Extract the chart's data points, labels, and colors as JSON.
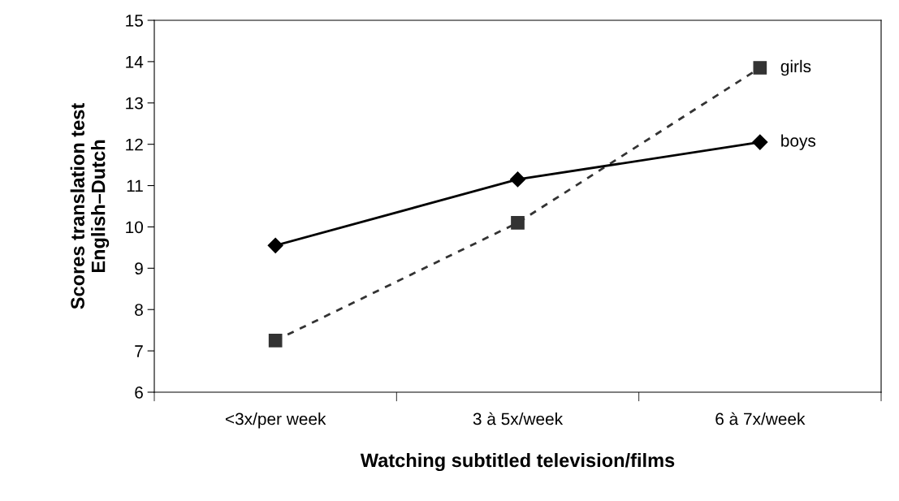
{
  "chart_data": {
    "type": "line",
    "xlabel": "Watching subtitled television/films",
    "ylabel": "Scores translation test\nEnglish–Dutch",
    "categories": [
      "<3x/per week",
      "3 à 5x/week",
      "6 à 7x/week"
    ],
    "series": [
      {
        "name": "girls",
        "color": "#333333",
        "values": [
          7.25,
          10.1,
          13.85
        ],
        "marker": "square",
        "line_style": "dashed"
      },
      {
        "name": "boys",
        "color": "#000000",
        "values": [
          9.55,
          11.15,
          12.05
        ],
        "marker": "diamond",
        "line_style": "solid"
      }
    ],
    "ylim": [
      6,
      15
    ],
    "yticks": [
      6,
      7,
      8,
      9,
      10,
      11,
      12,
      13,
      14,
      15
    ],
    "grid": false,
    "legend": false
  }
}
